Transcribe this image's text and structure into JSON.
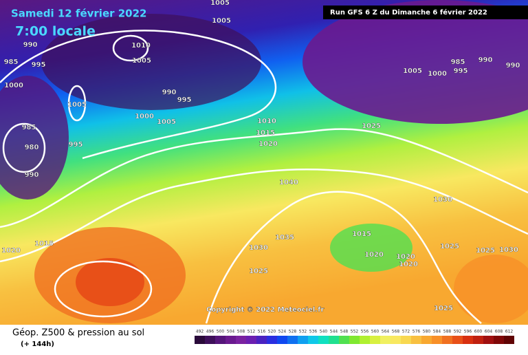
{
  "header": {
    "date": "Samedi 12 février 2022",
    "time": "7:00 locale",
    "run": "Run GFS 6 Z du Dimanche 6 février 2022",
    "copyright": "Copyright © 2022 Meteociel.fr"
  },
  "legend": {
    "title": "Géop. Z500 & pression au sol",
    "lead": "(+ 144h)",
    "scale": [
      492,
      496,
      500,
      504,
      508,
      512,
      516,
      520,
      524,
      528,
      532,
      536,
      540,
      544,
      548,
      552,
      556,
      560,
      564,
      568,
      572,
      576,
      580,
      584,
      588,
      592,
      596,
      600,
      604,
      608,
      612
    ],
    "colors": [
      "#2a0a3a",
      "#3e0f5a",
      "#55157a",
      "#6a1a8f",
      "#7a22a0",
      "#6b1fb0",
      "#4a22c0",
      "#2a2ee0",
      "#1048f0",
      "#1070f0",
      "#10a0f0",
      "#10c8e8",
      "#10e0c0",
      "#20e090",
      "#50e050",
      "#80e830",
      "#b0f030",
      "#d8f040",
      "#f0f060",
      "#f8e860",
      "#f8d850",
      "#f8c040",
      "#f8a830",
      "#f89028",
      "#f07020",
      "#e85018",
      "#d83010",
      "#c02010",
      "#a01010",
      "#800808",
      "#600404"
    ]
  },
  "isobars": [
    1005,
    1005,
    990,
    985,
    995,
    1010,
    1005,
    1000,
    990,
    995,
    1005,
    1000,
    1005,
    985,
    980,
    995,
    990,
    1010,
    1015,
    1020,
    1025,
    1040,
    1030,
    1035,
    1030,
    1025,
    1015,
    1020,
    1015,
    1020,
    1020,
    1020,
    1025,
    1025,
    1030,
    1025,
    1005,
    1000,
    985,
    995,
    990,
    990
  ]
}
